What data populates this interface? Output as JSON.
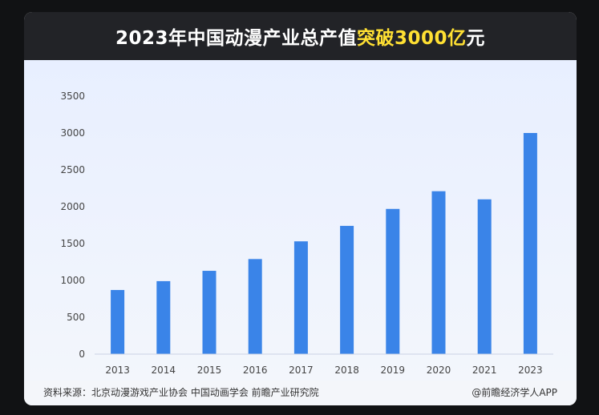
{
  "header": {
    "title_main": "2023年中国动漫产业总产值",
    "title_highlight": "突破3000亿",
    "title_suffix": "元"
  },
  "footer": {
    "source": "资料来源：北京动漫游戏产业协会 中国动画学会 前瞻产业研究院",
    "credit": "@前瞻经济学人APP"
  },
  "colors": {
    "bar": "#3a84e8",
    "header_bg": "#222327",
    "highlight": "#ffe033"
  },
  "chart_data": {
    "type": "bar",
    "categories": [
      "2013",
      "2014",
      "2015",
      "2016",
      "2017",
      "2018",
      "2019",
      "2020",
      "2021",
      "2023"
    ],
    "values": [
      870,
      990,
      1130,
      1290,
      1530,
      1740,
      1970,
      2210,
      2100,
      3000
    ],
    "yticks": [
      "0",
      "500",
      "1000",
      "1500",
      "2000",
      "2500",
      "3000",
      "3500"
    ],
    "ylim": [
      0,
      3500
    ],
    "grid": false,
    "legend": "none"
  }
}
